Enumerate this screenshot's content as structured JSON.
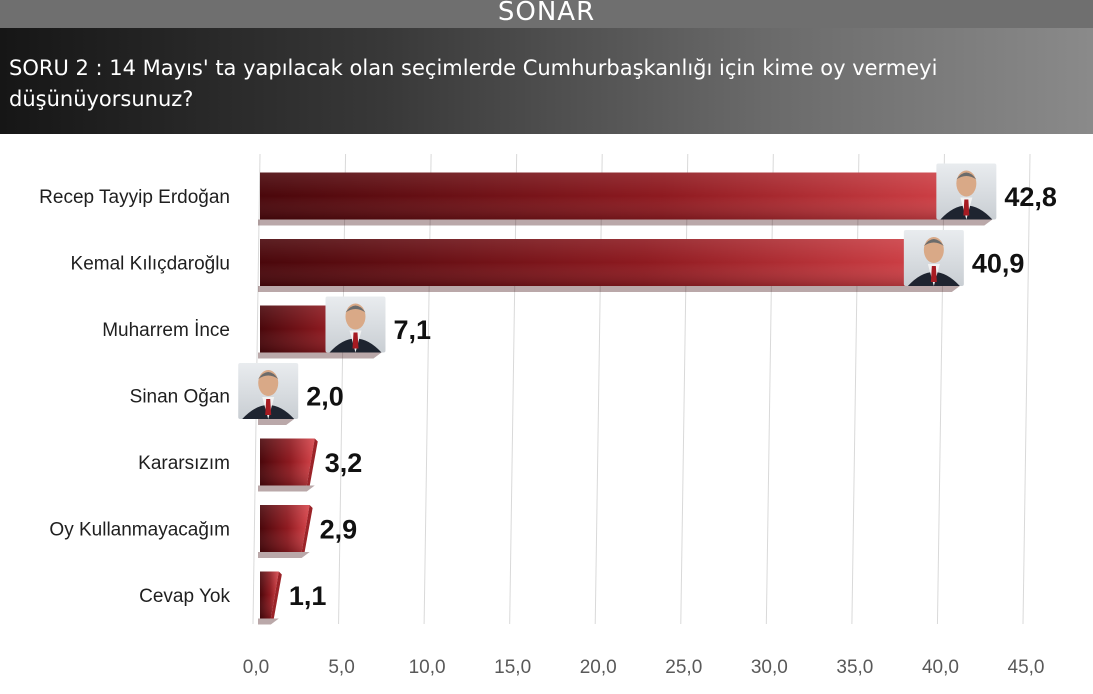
{
  "header": {
    "brand": "SONAR",
    "question": "SORU 2 :  14 Mayıs' ta yapılacak olan seçimlerde Cumhurbaşkanlığı için kime oy vermeyi düşünüyorsunuz?"
  },
  "chart_data": {
    "type": "bar",
    "orientation": "horizontal",
    "categories": [
      "Recep Tayyip Erdoğan",
      "Kemal Kılıçdaroğlu",
      "Muharrem İnce",
      "Sinan Oğan",
      "Kararsızım",
      "Oy Kullanmayacağım",
      "Cevap Yok"
    ],
    "values": [
      42.8,
      40.9,
      7.1,
      2.0,
      3.2,
      2.9,
      1.1
    ],
    "value_labels": [
      "42,8",
      "40,9",
      "7,1",
      "2,0",
      "3,2",
      "2,9",
      "1,1"
    ],
    "xlim": [
      0,
      45
    ],
    "xticks": [
      "0,0",
      "5,0",
      "10,0",
      "15,0",
      "20,0",
      "25,0",
      "30,0",
      "35,0",
      "40,0",
      "45,0"
    ],
    "grid": true,
    "colors": {
      "bar_dark": "#5e0c10",
      "bar_light": "#d13a40",
      "bar_top": "#8a1a1f"
    },
    "icons": [
      "candidate-photo-icon",
      "candidate-photo-icon",
      "candidate-photo-icon",
      "candidate-photo-icon",
      null,
      null,
      null
    ]
  }
}
